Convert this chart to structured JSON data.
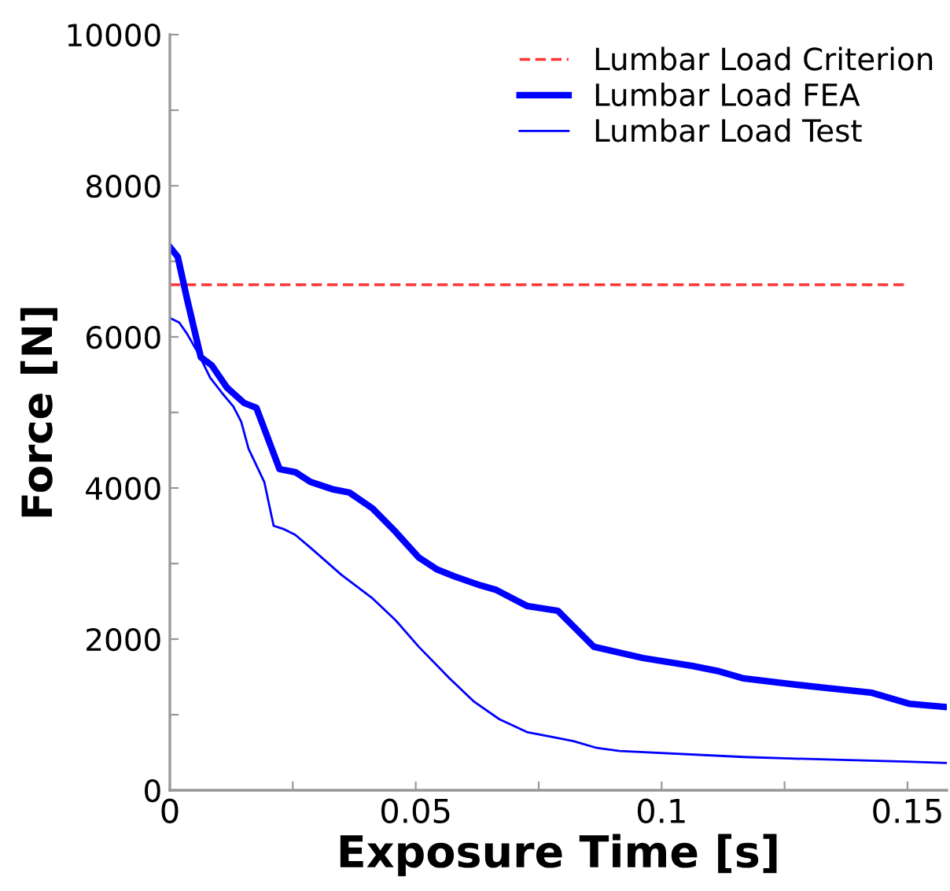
{
  "chart_data": {
    "type": "line",
    "xlabel": "Exposure Time [s]",
    "ylabel": "Force [N]",
    "xlim": [
      0,
      0.158
    ],
    "ylim": [
      0,
      10000
    ],
    "xticks": [
      0,
      {
        "value": 0.025,
        "label": null
      },
      0.05,
      {
        "value": 0.075,
        "label": null
      },
      0.1,
      {
        "value": 0.125,
        "label": null
      },
      0.15
    ],
    "yticks": [
      0,
      {
        "value": 1000,
        "label": null
      },
      2000,
      {
        "value": 3000,
        "label": null
      },
      4000,
      {
        "value": 5000,
        "label": null
      },
      6000,
      {
        "value": 7000,
        "label": null
      },
      8000,
      {
        "value": 9000,
        "label": null
      },
      10000
    ],
    "grid": false,
    "legend": "top right",
    "marker": "none",
    "series": [
      {
        "name": "Lumbar Load Criterion",
        "color": "#ff3333",
        "line_style": "dashed",
        "x": [
          0,
          0.15
        ],
        "values": [
          6690,
          6690
        ]
      },
      {
        "name": "Lumbar Load FEA",
        "color": "#0000ff",
        "line_style": "solid",
        "x": [
          0,
          0.0016,
          0.0035,
          0.0063,
          0.0085,
          0.0116,
          0.0151,
          0.0176,
          0.0223,
          0.0255,
          0.0286,
          0.0333,
          0.0365,
          0.0412,
          0.0459,
          0.0506,
          0.0544,
          0.0579,
          0.0632,
          0.0664,
          0.0726,
          0.0789,
          0.0862,
          0.0962,
          0.1063,
          0.1113,
          0.1167,
          0.127,
          0.134,
          0.1428,
          0.1503,
          0.158
        ],
        "values": [
          7190,
          7060,
          6500,
          5730,
          5625,
          5330,
          5125,
          5060,
          4250,
          4210,
          4080,
          3980,
          3940,
          3730,
          3420,
          3080,
          2920,
          2830,
          2710,
          2650,
          2440,
          2375,
          1900,
          1750,
          1645,
          1580,
          1480,
          1400,
          1350,
          1290,
          1145,
          1100
        ]
      },
      {
        "name": "Lumbar Load Test",
        "color": "#0000ff",
        "line_style": "solid",
        "x": [
          0,
          0.0019,
          0.0035,
          0.0057,
          0.0082,
          0.0107,
          0.0129,
          0.0145,
          0.016,
          0.0192,
          0.0211,
          0.023,
          0.0255,
          0.0286,
          0.0349,
          0.0412,
          0.0459,
          0.0506,
          0.0569,
          0.0619,
          0.067,
          0.0726,
          0.0774,
          0.0821,
          0.0868,
          0.0915,
          0.1167,
          0.1261,
          0.1497,
          0.158
        ],
        "values": [
          6250,
          6190,
          6040,
          5790,
          5460,
          5250,
          5080,
          4880,
          4520,
          4080,
          3500,
          3460,
          3380,
          3210,
          2850,
          2540,
          2250,
          1900,
          1480,
          1170,
          940,
          770,
          710,
          650,
          560,
          520,
          440,
          420,
          380,
          360
        ]
      }
    ]
  }
}
